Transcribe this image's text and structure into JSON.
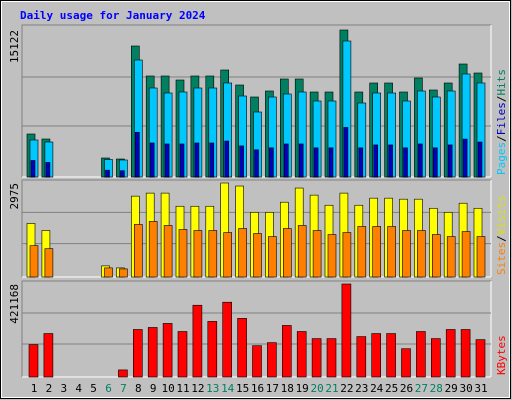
{
  "title": "Daily usage for January 2024",
  "categories": [
    "1",
    "2",
    "3",
    "4",
    "5",
    "6",
    "7",
    "8",
    "9",
    "10",
    "11",
    "12",
    "13",
    "14",
    "15",
    "16",
    "17",
    "18",
    "19",
    "20",
    "21",
    "22",
    "23",
    "24",
    "25",
    "26",
    "27",
    "28",
    "29",
    "30",
    "31"
  ],
  "weekends": [
    "6",
    "7",
    "13",
    "14",
    "20",
    "21",
    "27",
    "28"
  ],
  "weekend_color": "#008060",
  "separator": "/",
  "chart_data": [
    {
      "type": "bar",
      "ylim": [
        0,
        15122
      ],
      "yticks": [
        15122
      ],
      "grid": true,
      "series": [
        {
          "name": "Hits",
          "color": "#008060",
          "values": [
            4423,
            3909,
            0,
            0,
            0,
            1955,
            1852,
            13476,
            10390,
            10390,
            9978,
            10390,
            10390,
            11007,
            9464,
            8230,
            8847,
            10081,
            10081,
            8744,
            8744,
            15122,
            8744,
            9670,
            9670,
            8744,
            10184,
            8950,
            9670,
            11624,
            10698
          ]
        },
        {
          "name": "Files",
          "color": "#0000c0",
          "values": [
            1700,
            1500,
            0,
            0,
            0,
            700,
            650,
            4600,
            3500,
            3400,
            3400,
            3500,
            3500,
            3700,
            3200,
            2800,
            3000,
            3400,
            3400,
            3000,
            3000,
            5100,
            3000,
            3300,
            3300,
            3000,
            3400,
            3000,
            3300,
            3900,
            3600
          ]
        },
        {
          "name": "Pages",
          "color": "#00c8ff",
          "values": [
            3806,
            3600,
            0,
            0,
            0,
            1800,
            1749,
            12036,
            9155,
            8641,
            8744,
            9155,
            9155,
            9670,
            8332,
            6686,
            8230,
            8538,
            8744,
            7818,
            7818,
            13990,
            7612,
            8641,
            8641,
            7818,
            8847,
            8230,
            8847,
            10595,
            9670
          ]
        }
      ]
    },
    {
      "type": "bar",
      "ylim": [
        0,
        2975
      ],
      "yticks": [
        2975
      ],
      "grid": true,
      "series": [
        {
          "name": "Visits",
          "color": "#ffff00",
          "values": [
            1695,
            1471,
            0,
            0,
            0,
            352,
            288,
            2559,
            2655,
            2655,
            2239,
            2239,
            2239,
            2975,
            2879,
            2047,
            2047,
            2367,
            2815,
            2591,
            2271,
            2655,
            2271,
            2495,
            2495,
            2463,
            2463,
            2175,
            2047,
            2335,
            2175
          ]
        },
        {
          "name": "Sites",
          "color": "#ff8000",
          "values": [
            992,
            896,
            0,
            0,
            0,
            288,
            256,
            1663,
            1759,
            1631,
            1503,
            1471,
            1471,
            1407,
            1535,
            1376,
            1280,
            1535,
            1631,
            1471,
            1344,
            1407,
            1599,
            1599,
            1599,
            1471,
            1471,
            1344,
            1280,
            1439,
            1280
          ]
        }
      ]
    },
    {
      "type": "bar",
      "ylim": [
        0,
        421168
      ],
      "yticks": [
        421168
      ],
      "grid": true,
      "series": [
        {
          "name": "KBytes",
          "color": "#ff0000",
          "values": [
            146493,
            196851,
            0,
            0,
            0,
            0,
            32045,
            215163,
            224318,
            242630,
            206007,
            325032,
            251786,
            338766,
            265519,
            141916,
            155650,
            233474,
            206007,
            173961,
            173961,
            421168,
            183117,
            196851,
            196851,
            128181,
            206007,
            173961,
            215163,
            215163,
            169383
          ]
        }
      ]
    }
  ]
}
